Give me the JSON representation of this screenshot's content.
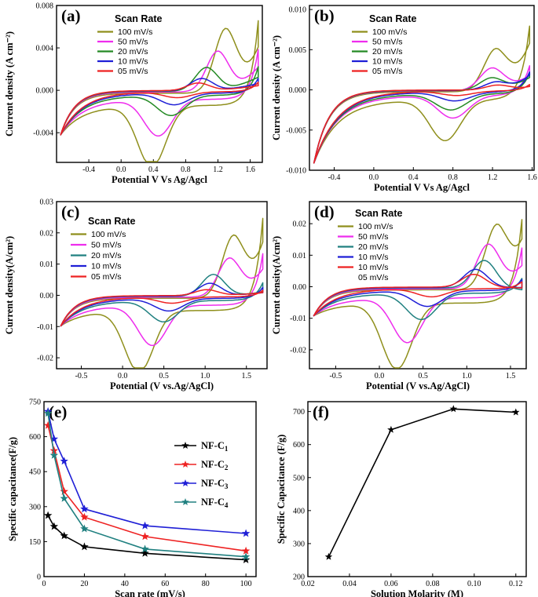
{
  "chart_data": [
    {
      "panel": "(a)",
      "type": "line",
      "xlabel": "Potential V Vs Ag/Agcl",
      "ylabel": "Current density (A cm⁻²)",
      "xlim": [
        -0.8,
        1.75
      ],
      "ylim": [
        -0.0068,
        0.008
      ],
      "xticks": [
        "-0.4",
        "0.0",
        "0.4",
        "0.8",
        "1.2",
        "1.6"
      ],
      "yticks": [
        "-0.004",
        "0.000",
        "0.004",
        "0.008"
      ],
      "legend_title": "Scan Rate",
      "series": [
        {
          "name": "100 mV/s",
          "color": "#8f8f1c",
          "vmin": -0.0042,
          "peak": -0.0064,
          "vmax": 0.008,
          "ox": 0.0068,
          "ox_v": 1.3,
          "red_v": 0.38
        },
        {
          "name": "50 mV/s",
          "color": "#ee2ded",
          "vmin": -0.0042,
          "peak": -0.0038,
          "vmax": 0.0047,
          "ox": 0.0043,
          "ox_v": 1.2,
          "red_v": 0.46
        },
        {
          "name": "20 mV/s",
          "color": "#248a24",
          "vmin": -0.0042,
          "peak": -0.0021,
          "vmax": 0.0027,
          "ox": 0.0025,
          "ox_v": 1.06,
          "red_v": 0.62
        },
        {
          "name": "10 mV/s",
          "color": "#1f1fd6",
          "vmin": -0.0042,
          "peak": -0.0012,
          "vmax": 0.0014,
          "ox": 0.0013,
          "ox_v": 1.0,
          "red_v": 0.66
        },
        {
          "name": "05 mV/s",
          "color": "#ee2222",
          "vmin": -0.0042,
          "peak": -0.0006,
          "vmax": 0.0009,
          "ox": 0.0008,
          "ox_v": 0.96,
          "red_v": 0.7
        }
      ]
    },
    {
      "panel": "(b)",
      "type": "line",
      "xlabel": "Potential V Vs Ag/Agcl",
      "ylabel": "Current density (A cm⁻²)",
      "xlim": [
        -0.65,
        1.62
      ],
      "ylim": [
        -0.01,
        0.0105
      ],
      "xticks": [
        "-0.4",
        "0.0",
        "0.4",
        "0.8",
        "1.2",
        "1.6"
      ],
      "yticks": [
        "-0.010",
        "-0.005",
        "0.000",
        "0.005",
        "0.010"
      ],
      "legend_title": "Scan Rate",
      "series": [
        {
          "name": "100 mV/s",
          "color": "#8f8f1c",
          "vmin": -0.0091,
          "peak": -0.0056,
          "vmax": 0.0092,
          "ox": 0.006,
          "ox_v": 1.24,
          "red_v": 0.72
        },
        {
          "name": "50 mV/s",
          "color": "#ee2ded",
          "vmin": -0.0091,
          "peak": -0.0031,
          "vmax": 0.0037,
          "ox": 0.0032,
          "ox_v": 1.2,
          "red_v": 0.8
        },
        {
          "name": "20 mV/s",
          "color": "#248a24",
          "vmin": -0.0091,
          "peak": -0.0022,
          "vmax": 0.0026,
          "ox": 0.0018,
          "ox_v": 1.2,
          "red_v": 0.78
        },
        {
          "name": "10 mV/s",
          "color": "#1f1fd6",
          "vmin": -0.0091,
          "peak": -0.0012,
          "vmax": 0.0025,
          "ox": 0.0012,
          "ox_v": 1.25,
          "red_v": 0.82
        },
        {
          "name": "05 mV/s",
          "color": "#ee2222",
          "vmin": -0.0091,
          "peak": -0.0006,
          "vmax": 0.0008,
          "ox": 0.0007,
          "ox_v": 1.26,
          "red_v": 0.84
        }
      ]
    },
    {
      "panel": "(c)",
      "type": "line",
      "xlabel": "Potential (V vs.Ag/AgCl)",
      "ylabel": "Current density(A/cm²)",
      "xlim": [
        -0.8,
        1.75
      ],
      "ylim": [
        -0.0235,
        0.03
      ],
      "xticks": [
        "-0.5",
        "0.0",
        "0.5",
        "1.0",
        "1.5"
      ],
      "yticks": [
        "-0.02",
        "-0.01",
        "0.00",
        "0.01",
        "0.02",
        "0.03"
      ],
      "legend_title": "Scan Rate",
      "series": [
        {
          "name": "100 mV/s",
          "color": "#8f8f1c",
          "vmin": -0.0098,
          "peak": -0.0218,
          "vmax": 0.0295,
          "ox": 0.0225,
          "ox_v": 1.35,
          "red_v": 0.2
        },
        {
          "name": "50 mV/s",
          "color": "#ee2ded",
          "vmin": -0.0098,
          "peak": -0.0142,
          "vmax": 0.0165,
          "ox": 0.014,
          "ox_v": 1.3,
          "red_v": 0.36
        },
        {
          "name": "20 mV/s",
          "color": "#208080",
          "vmin": -0.0098,
          "peak": -0.0075,
          "vmax": 0.0057,
          "ox": 0.0078,
          "ox_v": 1.1,
          "red_v": 0.5
        },
        {
          "name": "10 mV/s",
          "color": "#1f1fd6",
          "vmin": -0.0098,
          "peak": -0.0044,
          "vmax": 0.0035,
          "ox": 0.0045,
          "ox_v": 1.06,
          "red_v": 0.56
        },
        {
          "name": "05 mV/s",
          "color": "#ee2222",
          "vmin": -0.0098,
          "peak": -0.0022,
          "vmax": 0.0021,
          "ox": 0.0021,
          "ox_v": 1.02,
          "red_v": 0.6
        }
      ]
    },
    {
      "panel": "(d)",
      "type": "line",
      "xlabel": "Potential (V vs.Ag/AgCl)",
      "ylabel": "Current density(A/cm²)",
      "xlim": [
        -0.8,
        1.68
      ],
      "ylim": [
        -0.026,
        0.027
      ],
      "xticks": [
        "-0.5",
        "0.0",
        "0.5",
        "1.0",
        "1.5"
      ],
      "yticks": [
        "-0.02",
        "-0.01",
        "0.00",
        "0.01",
        "0.02"
      ],
      "legend_title": "Scan Rate",
      "series": [
        {
          "name": "100 mV/s",
          "color": "#8f8f1c",
          "vmin": -0.0092,
          "peak": -0.0232,
          "vmax": 0.0265,
          "ox": 0.0232,
          "ox_v": 1.35,
          "red_v": 0.2
        },
        {
          "name": "50 mV/s",
          "color": "#ee2ded",
          "vmin": -0.0092,
          "peak": -0.0157,
          "vmax": 0.0158,
          "ox": 0.0158,
          "ox_v": 1.25,
          "red_v": 0.32
        },
        {
          "name": "20 mV/s",
          "color": "#208080",
          "vmin": -0.0092,
          "peak": -0.0092,
          "vmax": 0.0047,
          "ox": 0.0097,
          "ox_v": 1.2,
          "red_v": 0.48
        },
        {
          "name": "10 mV/s",
          "color": "#1f1fd6",
          "vmin": -0.0092,
          "peak": -0.0055,
          "vmax": 0.0035,
          "ox": 0.0064,
          "ox_v": 1.1,
          "red_v": 0.55
        },
        {
          "name": "10 mV/s",
          "color": "#ee2222",
          "vmin": -0.0092,
          "peak": -0.0028,
          "vmax": 0.0022,
          "ox": 0.0045,
          "ox_v": 1.08,
          "red_v": 0.6
        },
        {
          "name": "05 mV/s",
          "color": "none",
          "legend_only": true
        }
      ]
    },
    {
      "panel": "(e)",
      "type": "line",
      "xlabel": "Scan rate (mV/s)",
      "ylabel": "Specific capacitance(F/g)",
      "xlim": [
        0,
        105
      ],
      "ylim": [
        0,
        750
      ],
      "xticks": [
        "0",
        "20",
        "40",
        "60",
        "80",
        "100"
      ],
      "yticks": [
        "0",
        "150",
        "300",
        "450",
        "600",
        "750"
      ],
      "x": [
        2,
        5,
        10,
        20,
        50,
        100
      ],
      "series": [
        {
          "name": "NF-C",
          "sub": "1",
          "color": "#000000",
          "values": [
            262,
            215,
            175,
            128,
            100,
            72
          ]
        },
        {
          "name": "NF-C",
          "sub": "2",
          "color": "#ee2222",
          "values": [
            648,
            540,
            365,
            255,
            172,
            110
          ]
        },
        {
          "name": "NF-C",
          "sub": "3",
          "color": "#1f1fd6",
          "values": [
            708,
            590,
            495,
            290,
            218,
            185
          ]
        },
        {
          "name": "NF-C",
          "sub": "4",
          "color": "#208080",
          "values": [
            700,
            520,
            335,
            205,
            118,
            85
          ]
        }
      ]
    },
    {
      "panel": "(f)",
      "type": "line",
      "xlabel": "Solution Molarity (M)",
      "ylabel": "Specific Capacitance (F/g)",
      "xlim": [
        0.02,
        0.125
      ],
      "ylim": [
        200,
        730
      ],
      "xticks": [
        "0.02",
        "0.04",
        "0.06",
        "0.08",
        "0.10",
        "0.12"
      ],
      "yticks": [
        "200",
        "300",
        "400",
        "500",
        "600",
        "700"
      ],
      "x": [
        0.03,
        0.06,
        0.09,
        0.12
      ],
      "series": [
        {
          "name": "Capacitance",
          "color": "#000000",
          "values": [
            260,
            645,
            708,
            698
          ]
        }
      ]
    }
  ]
}
